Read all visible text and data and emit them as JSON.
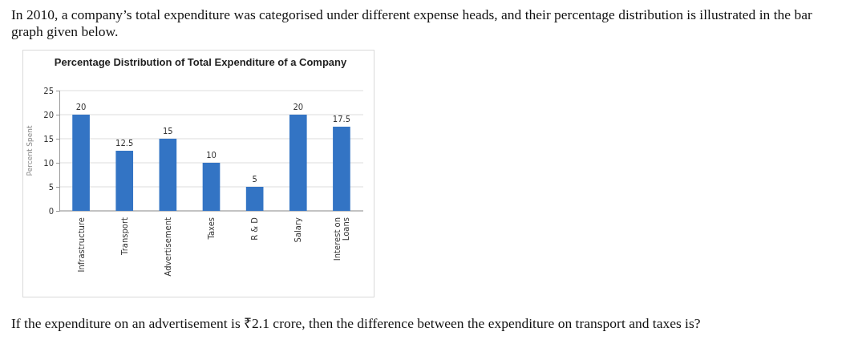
{
  "chart_data": {
    "type": "bar",
    "title": "Percentage Distribution of Total Expenditure of a Company",
    "ylabel": "Percent Spent",
    "categories": [
      "Infrastructure",
      "Transport",
      "Advertisement",
      "Taxes",
      "R & D",
      "Salary",
      "Interest on Loans"
    ],
    "values": [
      20,
      12.5,
      15,
      10,
      5,
      20,
      17.5
    ],
    "color": "#3374c4",
    "ylim": [
      0,
      25
    ],
    "yticks": [
      0,
      5,
      10,
      15,
      20,
      25
    ],
    "grid": "y",
    "data_labels": true,
    "annotations": [
      "In 2010, a company’s total expenditure was categorised under different expense heads, and their percentage distribution is illustrated in the bar graph given below.",
      "If the expenditure on an advertisement is ₹2.1 crore, then the difference between the expenditure on transport and taxes is?"
    ]
  }
}
